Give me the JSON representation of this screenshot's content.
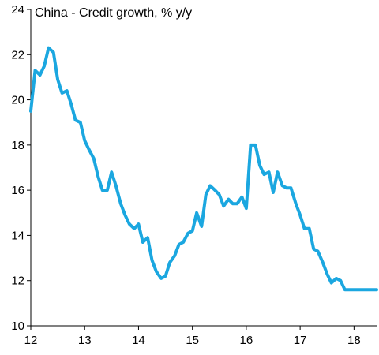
{
  "chart_data": {
    "type": "line",
    "title": "China - Credit growth, % y/y",
    "xlabel": "",
    "ylabel": "",
    "xlim": [
      12,
      18.42
    ],
    "ylim": [
      10,
      24
    ],
    "x_ticks": [
      12,
      13,
      14,
      15,
      16,
      17,
      18
    ],
    "x_tick_labels": [
      "12",
      "13",
      "14",
      "15",
      "16",
      "17",
      "18"
    ],
    "y_ticks": [
      10,
      12,
      14,
      16,
      18,
      20,
      22,
      24
    ],
    "y_tick_labels": [
      "10",
      "12",
      "14",
      "16",
      "18",
      "20",
      "22",
      "24"
    ],
    "grid": false,
    "legend": "none",
    "line_color": "#1ba7e0",
    "axis_color": "#000000",
    "series": [
      {
        "x": [
          12.0,
          12.08,
          12.17,
          12.25,
          12.33,
          12.42,
          12.5,
          12.58,
          12.67,
          12.75,
          12.83,
          12.92,
          13.0,
          13.08,
          13.17,
          13.25,
          13.33,
          13.42,
          13.5,
          13.58,
          13.67,
          13.75,
          13.83,
          13.92,
          14.0,
          14.08,
          14.17,
          14.25,
          14.33,
          14.42,
          14.5,
          14.58,
          14.67,
          14.75,
          14.83,
          14.92,
          15.0,
          15.08,
          15.17,
          15.25,
          15.33,
          15.42,
          15.5,
          15.58,
          15.67,
          15.75,
          15.83,
          15.92,
          16.0,
          16.08,
          16.17,
          16.25,
          16.33,
          16.42,
          16.5,
          16.58,
          16.67,
          16.75,
          16.83,
          16.92,
          17.0,
          17.08,
          17.17,
          17.25,
          17.33,
          17.42,
          17.5,
          17.58,
          17.67,
          17.75,
          17.83,
          17.92,
          18.0,
          18.08,
          18.17,
          18.25,
          18.33,
          18.42
        ],
        "values": [
          19.5,
          21.3,
          21.1,
          21.5,
          22.3,
          22.1,
          20.9,
          20.3,
          20.4,
          19.8,
          19.1,
          19.0,
          18.2,
          17.8,
          17.4,
          16.6,
          16.0,
          16.0,
          16.8,
          16.2,
          15.4,
          14.9,
          14.5,
          14.3,
          14.5,
          13.7,
          13.9,
          12.9,
          12.4,
          12.1,
          12.2,
          12.8,
          13.1,
          13.6,
          13.7,
          14.1,
          14.2,
          15.0,
          14.4,
          15.8,
          16.2,
          16.0,
          15.8,
          15.3,
          15.6,
          15.4,
          15.4,
          15.7,
          15.2,
          18.0,
          18.0,
          17.1,
          16.7,
          16.8,
          15.9,
          16.8,
          16.2,
          16.1,
          16.1,
          15.4,
          14.9,
          14.3,
          14.3,
          13.4,
          13.3,
          12.8,
          12.3,
          11.9,
          12.1,
          12.0,
          11.6,
          11.6,
          11.6,
          11.6,
          11.6,
          11.6,
          11.6,
          11.6
        ]
      }
    ]
  }
}
